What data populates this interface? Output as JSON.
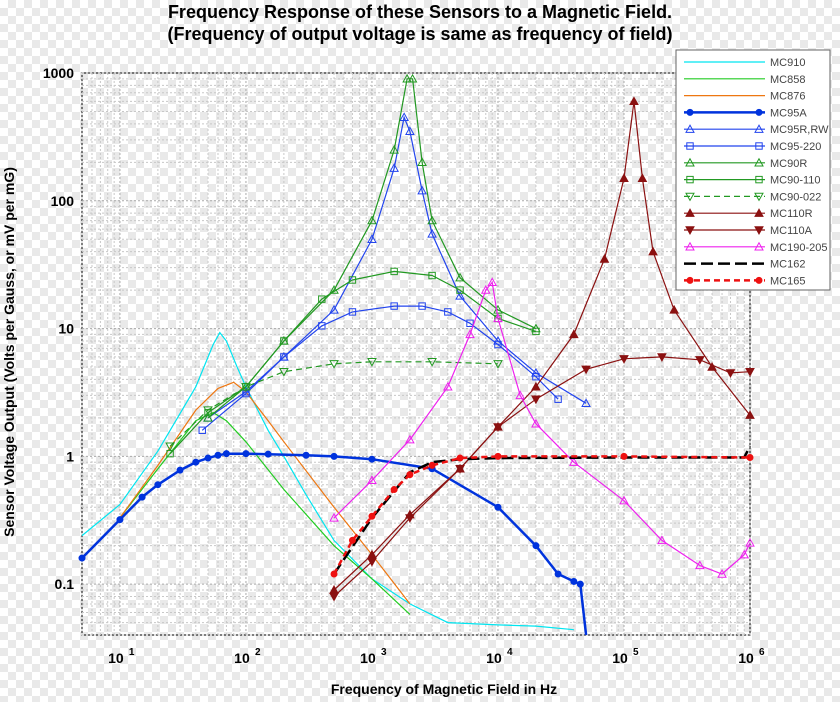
{
  "chart_data": {
    "type": "line",
    "title": "Frequency Response of these Sensors to a Magnetic Field.",
    "subtitle": "(Frequency of output voltage is same as frequency of field)",
    "xlabel": "Frequency of Magnetic Field in Hz",
    "ylabel": "Sensor Voltage Output (Volts per Gauss, or mV per mG)",
    "x_scale": "log",
    "y_scale": "log",
    "xlim": [
      5,
      1000000
    ],
    "ylim": [
      0.04,
      1000
    ],
    "grid": true,
    "legend_position": "top-right",
    "x_ticks": [
      {
        "base": "10",
        "exp": "1",
        "value": 10
      },
      {
        "base": "10",
        "exp": "2",
        "value": 100
      },
      {
        "base": "10",
        "exp": "3",
        "value": 1000
      },
      {
        "base": "10",
        "exp": "4",
        "value": 10000
      },
      {
        "base": "10",
        "exp": "5",
        "value": 100000
      },
      {
        "base": "10",
        "exp": "6",
        "value": 1000000
      }
    ],
    "y_ticks": [
      {
        "label": "0.1",
        "value": 0.1
      },
      {
        "label": "1",
        "value": 1
      },
      {
        "label": "10",
        "value": 10
      },
      {
        "label": "100",
        "value": 100
      },
      {
        "label": "1000",
        "value": 1000
      }
    ],
    "series": [
      {
        "name": "MC910",
        "color": "#00e5f0",
        "marker": "none",
        "dash": "none",
        "points": [
          [
            5,
            0.24
          ],
          [
            10,
            0.42
          ],
          [
            20,
            1.1
          ],
          [
            40,
            3.5
          ],
          [
            55,
            7.5
          ],
          [
            62,
            9.3
          ],
          [
            70,
            8
          ],
          [
            85,
            5
          ],
          [
            100,
            3.5
          ],
          [
            150,
            1.6
          ],
          [
            200,
            1
          ],
          [
            300,
            0.5
          ],
          [
            500,
            0.22
          ],
          [
            1000,
            0.11
          ],
          [
            2000,
            0.07
          ],
          [
            4000,
            0.05
          ],
          [
            10000,
            0.048
          ],
          [
            20000,
            0.047
          ],
          [
            40000,
            0.044
          ]
        ]
      },
      {
        "name": "MC858",
        "color": "#22cc22",
        "marker": "none",
        "dash": "none",
        "points": [
          [
            10,
            0.33
          ],
          [
            20,
            0.8
          ],
          [
            40,
            1.9
          ],
          [
            55,
            2.2
          ],
          [
            70,
            1.9
          ],
          [
            100,
            1.3
          ],
          [
            200,
            0.55
          ],
          [
            500,
            0.2
          ],
          [
            1000,
            0.11
          ],
          [
            2000,
            0.058
          ]
        ]
      },
      {
        "name": "MC876",
        "color": "#ee7711",
        "marker": "none",
        "dash": "none",
        "points": [
          [
            10,
            0.33
          ],
          [
            20,
            0.85
          ],
          [
            40,
            2.3
          ],
          [
            60,
            3.4
          ],
          [
            80,
            3.8
          ],
          [
            100,
            3.2
          ],
          [
            150,
            1.9
          ],
          [
            200,
            1.3
          ],
          [
            500,
            0.4
          ],
          [
            1000,
            0.17
          ],
          [
            2000,
            0.07
          ]
        ]
      },
      {
        "name": "MC95A",
        "color": "#0033dd",
        "marker": "circle",
        "filled": true,
        "dash": "none",
        "points": [
          [
            5,
            0.16
          ],
          [
            10,
            0.32
          ],
          [
            15,
            0.48
          ],
          [
            20,
            0.6
          ],
          [
            30,
            0.78
          ],
          [
            40,
            0.9
          ],
          [
            50,
            0.97
          ],
          [
            60,
            1.02
          ],
          [
            70,
            1.05
          ],
          [
            100,
            1.05
          ],
          [
            150,
            1.04
          ],
          [
            300,
            1.02
          ],
          [
            500,
            1.0
          ],
          [
            1000,
            0.95
          ],
          [
            3000,
            0.8
          ],
          [
            10000,
            0.4
          ],
          [
            20000,
            0.2
          ],
          [
            30000,
            0.12
          ],
          [
            40000,
            0.105
          ],
          [
            45000,
            0.1
          ],
          [
            50000,
            0.04
          ]
        ]
      },
      {
        "name": "MC95R,RW",
        "color": "#2244ee",
        "marker": "triangle-up",
        "filled": false,
        "dash": "none",
        "points": [
          [
            50,
            2.0
          ],
          [
            100,
            3.2
          ],
          [
            200,
            6
          ],
          [
            500,
            14
          ],
          [
            1000,
            50
          ],
          [
            1500,
            180
          ],
          [
            1800,
            450
          ],
          [
            2000,
            350
          ],
          [
            2500,
            120
          ],
          [
            3000,
            55
          ],
          [
            5000,
            18
          ],
          [
            10000,
            8
          ],
          [
            20000,
            4.5
          ],
          [
            50000,
            2.6
          ]
        ]
      },
      {
        "name": "MC95-220",
        "color": "#2244ee",
        "marker": "square",
        "filled": false,
        "dash": "none",
        "points": [
          [
            45,
            1.6
          ],
          [
            100,
            3.1
          ],
          [
            200,
            6
          ],
          [
            400,
            10.5
          ],
          [
            700,
            13.5
          ],
          [
            1500,
            15
          ],
          [
            2500,
            15
          ],
          [
            4000,
            13.5
          ],
          [
            6000,
            11
          ],
          [
            10000,
            7.5
          ],
          [
            20000,
            4.2
          ],
          [
            30000,
            2.8
          ]
        ]
      },
      {
        "name": "MC90R",
        "color": "#229922",
        "marker": "triangle-up",
        "filled": false,
        "dash": "none",
        "points": [
          [
            50,
            2.0
          ],
          [
            100,
            3.5
          ],
          [
            200,
            8
          ],
          [
            500,
            20
          ],
          [
            1000,
            70
          ],
          [
            1500,
            250
          ],
          [
            1900,
            900
          ],
          [
            2100,
            900
          ],
          [
            2500,
            200
          ],
          [
            3000,
            70
          ],
          [
            5000,
            25
          ],
          [
            10000,
            14
          ],
          [
            20000,
            10
          ]
        ]
      },
      {
        "name": "MC90-110",
        "color": "#229922",
        "marker": "square",
        "filled": false,
        "dash": "none",
        "points": [
          [
            25,
            1.05
          ],
          [
            50,
            2.2
          ],
          [
            100,
            3.5
          ],
          [
            200,
            8
          ],
          [
            400,
            17
          ],
          [
            700,
            24
          ],
          [
            1500,
            28
          ],
          [
            3000,
            26
          ],
          [
            5000,
            20
          ],
          [
            10000,
            12
          ],
          [
            20000,
            9.5
          ]
        ]
      },
      {
        "name": "MC90-022",
        "color": "#229922",
        "marker": "triangle-down",
        "filled": false,
        "dash": "dash",
        "points": [
          [
            25,
            1.2
          ],
          [
            50,
            2.3
          ],
          [
            100,
            3.5
          ],
          [
            200,
            4.6
          ],
          [
            500,
            5.3
          ],
          [
            1000,
            5.5
          ],
          [
            3000,
            5.5
          ],
          [
            10000,
            5.3
          ]
        ]
      },
      {
        "name": "MC110R",
        "color": "#8b1111",
        "marker": "triangle-up",
        "filled": true,
        "dash": "none",
        "points": [
          [
            500,
            0.09
          ],
          [
            1000,
            0.17
          ],
          [
            2000,
            0.35
          ],
          [
            5000,
            0.8
          ],
          [
            10000,
            1.7
          ],
          [
            20000,
            3.5
          ],
          [
            40000,
            9
          ],
          [
            70000,
            35
          ],
          [
            100000,
            150
          ],
          [
            120000,
            600
          ],
          [
            140000,
            150
          ],
          [
            170000,
            40
          ],
          [
            250000,
            14
          ],
          [
            500000,
            5
          ],
          [
            1000000,
            2.1
          ]
        ]
      },
      {
        "name": "MC110A",
        "color": "#8b1111",
        "marker": "triangle-down",
        "filled": true,
        "dash": "none",
        "points": [
          [
            500,
            0.08
          ],
          [
            1000,
            0.15
          ],
          [
            2000,
            0.33
          ],
          [
            5000,
            0.8
          ],
          [
            10000,
            1.7
          ],
          [
            20000,
            2.8
          ],
          [
            50000,
            4.8
          ],
          [
            100000,
            5.8
          ],
          [
            200000,
            6
          ],
          [
            400000,
            5.7
          ],
          [
            700000,
            4.5
          ],
          [
            1000000,
            4.6
          ]
        ]
      },
      {
        "name": "MC190-205",
        "color": "#ee22ee",
        "marker": "triangle-up",
        "filled": false,
        "dash": "none",
        "points": [
          [
            500,
            0.33
          ],
          [
            1000,
            0.65
          ],
          [
            2000,
            1.35
          ],
          [
            4000,
            3.5
          ],
          [
            6000,
            9
          ],
          [
            8000,
            20
          ],
          [
            9000,
            23
          ],
          [
            10000,
            12
          ],
          [
            15000,
            3
          ],
          [
            20000,
            1.8
          ],
          [
            40000,
            0.9
          ],
          [
            100000,
            0.45
          ],
          [
            200000,
            0.22
          ],
          [
            400000,
            0.14
          ],
          [
            600000,
            0.12
          ],
          [
            900000,
            0.17
          ],
          [
            1000000,
            0.21
          ]
        ]
      },
      {
        "name": "MC162",
        "color": "#000000",
        "marker": "none",
        "dash": "longdash",
        "points": [
          [
            500,
            0.12
          ],
          [
            1000,
            0.33
          ],
          [
            2000,
            0.75
          ],
          [
            3000,
            0.9
          ],
          [
            5000,
            0.95
          ],
          [
            10000,
            0.97
          ],
          [
            100000,
            0.98
          ],
          [
            900000,
            0.98
          ],
          [
            1000000,
            1.2
          ]
        ]
      },
      {
        "name": "MC165",
        "color": "#ee1111",
        "marker": "circle",
        "filled": true,
        "dash": "dash",
        "points": [
          [
            500,
            0.12
          ],
          [
            700,
            0.22
          ],
          [
            1000,
            0.34
          ],
          [
            1500,
            0.55
          ],
          [
            2000,
            0.72
          ],
          [
            3000,
            0.85
          ],
          [
            5000,
            0.97
          ],
          [
            10000,
            1.0
          ],
          [
            100000,
            1.0
          ],
          [
            1000000,
            0.98
          ]
        ]
      }
    ]
  }
}
